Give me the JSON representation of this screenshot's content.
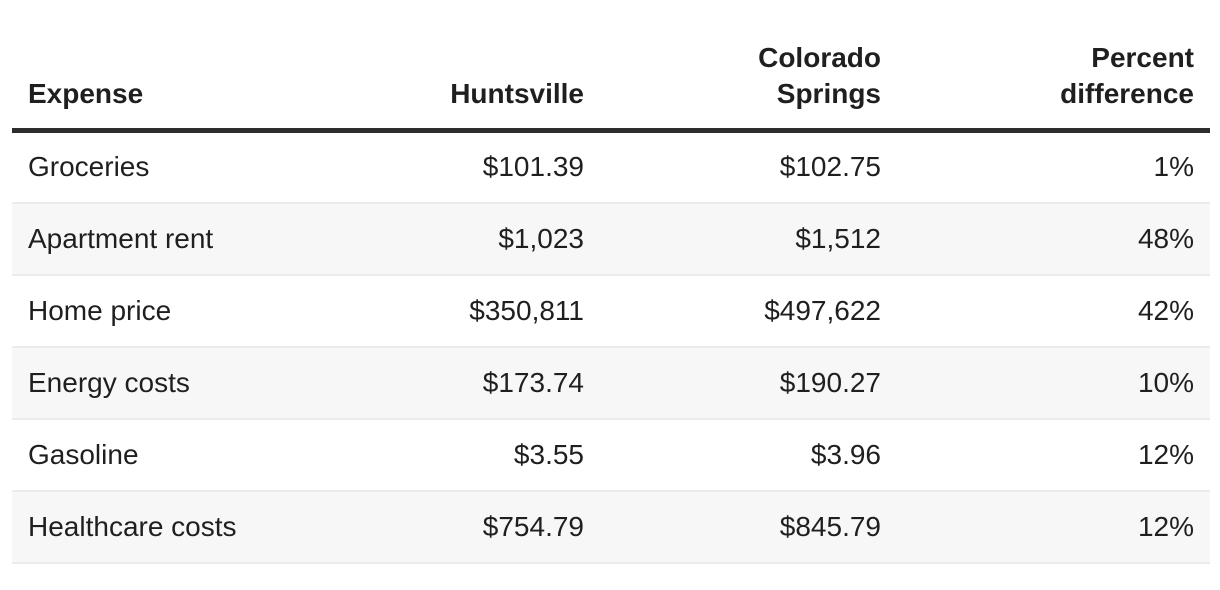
{
  "page": {
    "background": "#ffffff",
    "text_color": "#1f1f1f",
    "header_rule_color": "#2d2d2d",
    "zebra_row_color": "#f7f7f7",
    "row_divider_color": "#ebebeb"
  },
  "table": {
    "columns": [
      {
        "key": "expense",
        "label": "Expense",
        "align": "left"
      },
      {
        "key": "huntsville",
        "label": "Huntsville",
        "align": "right"
      },
      {
        "key": "colorado-springs",
        "label": "Colorado\nSprings",
        "align": "right"
      },
      {
        "key": "percent-difference",
        "label": "Percent\ndifference",
        "align": "right"
      }
    ],
    "rows": [
      {
        "cells": [
          "Groceries",
          "$101.39",
          "$102.75",
          "1%"
        ]
      },
      {
        "cells": [
          "Apartment rent",
          "$1,023",
          "$1,512",
          "48%"
        ]
      },
      {
        "cells": [
          "Home price",
          "$350,811",
          "$497,622",
          "42%"
        ]
      },
      {
        "cells": [
          "Energy costs",
          "$173.74",
          "$190.27",
          "10%"
        ]
      },
      {
        "cells": [
          "Gasoline",
          "$3.55",
          "$3.96",
          "12%"
        ]
      },
      {
        "cells": [
          "Healthcare costs",
          "$754.79",
          "$845.79",
          "12%"
        ]
      }
    ]
  },
  "chart_data": {
    "type": "table",
    "title": "",
    "columns": [
      "Expense",
      "Huntsville",
      "Colorado Springs",
      "Percent difference"
    ],
    "categories": [
      "Groceries",
      "Apartment rent",
      "Home price",
      "Energy costs",
      "Gasoline",
      "Healthcare costs"
    ],
    "series": [
      {
        "name": "Huntsville",
        "values": [
          101.39,
          1023,
          350811,
          173.74,
          3.55,
          754.79
        ]
      },
      {
        "name": "Colorado Springs",
        "values": [
          102.75,
          1512,
          497622,
          190.27,
          3.96,
          845.79
        ]
      },
      {
        "name": "Percent difference",
        "values": [
          1,
          48,
          42,
          10,
          12,
          12
        ]
      }
    ],
    "value_format": {
      "Huntsville": "USD",
      "Colorado Springs": "USD",
      "Percent difference": "percent"
    },
    "layout": {
      "zebra_striping": true,
      "header_rule": true,
      "numeric_alignment": "right"
    }
  }
}
